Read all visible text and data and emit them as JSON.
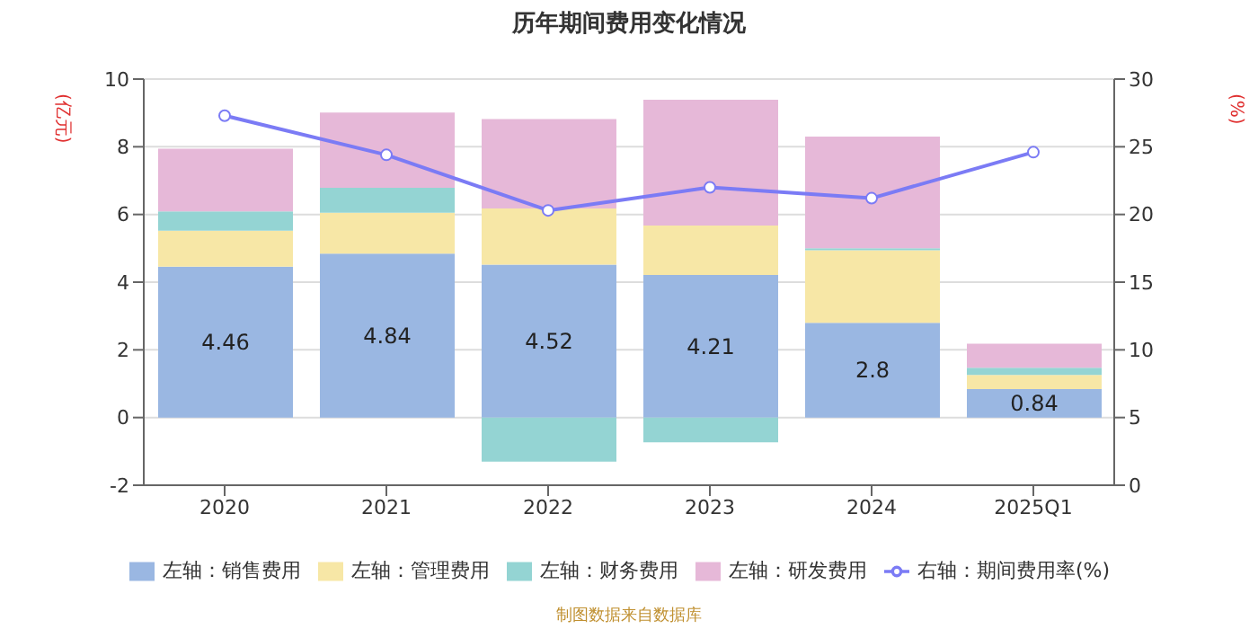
{
  "chart_data": {
    "type": "bar",
    "title": "历年期间费用变化情况",
    "ylabel": "(亿元)",
    "y2label": "(%)",
    "categories": [
      "2020",
      "2021",
      "2022",
      "2023",
      "2024",
      "2025Q1"
    ],
    "stacked": true,
    "series": [
      {
        "name": "左轴：销售费用",
        "color": "#9ab7e2",
        "values": [
          4.46,
          4.84,
          4.52,
          4.21,
          2.8,
          0.84
        ],
        "value_labels": [
          "4.46",
          "4.84",
          "4.52",
          "4.21",
          "2.8",
          "0.84"
        ]
      },
      {
        "name": "左轴：管理费用",
        "color": "#f7e7a6",
        "values": [
          1.06,
          1.21,
          1.66,
          1.46,
          2.14,
          0.42
        ]
      },
      {
        "name": "左轴：财务费用",
        "color": "#94d4d3",
        "values": [
          0.57,
          0.74,
          -1.3,
          -0.73,
          0.06,
          0.21
        ]
      },
      {
        "name": "左轴：研发费用",
        "color": "#e6b8d8",
        "values": [
          1.85,
          2.22,
          2.64,
          3.72,
          3.3,
          0.71
        ]
      },
      {
        "name": "右轴：期间费用率(%)",
        "type": "line",
        "axis": "y2",
        "color": "#7b7bf5",
        "marker": "circle",
        "values": [
          27.3,
          24.4,
          20.3,
          22.0,
          21.2,
          24.6
        ]
      }
    ],
    "ylim": [
      -2,
      10
    ],
    "yticks": [
      -2,
      0,
      2,
      4,
      6,
      8,
      10
    ],
    "y2lim": [
      0,
      30
    ],
    "y2ticks": [
      0,
      5,
      10,
      15,
      20,
      25,
      30
    ],
    "grid": "y",
    "legend": "bottom",
    "annotations": [
      "制图数据来自数据库"
    ]
  }
}
